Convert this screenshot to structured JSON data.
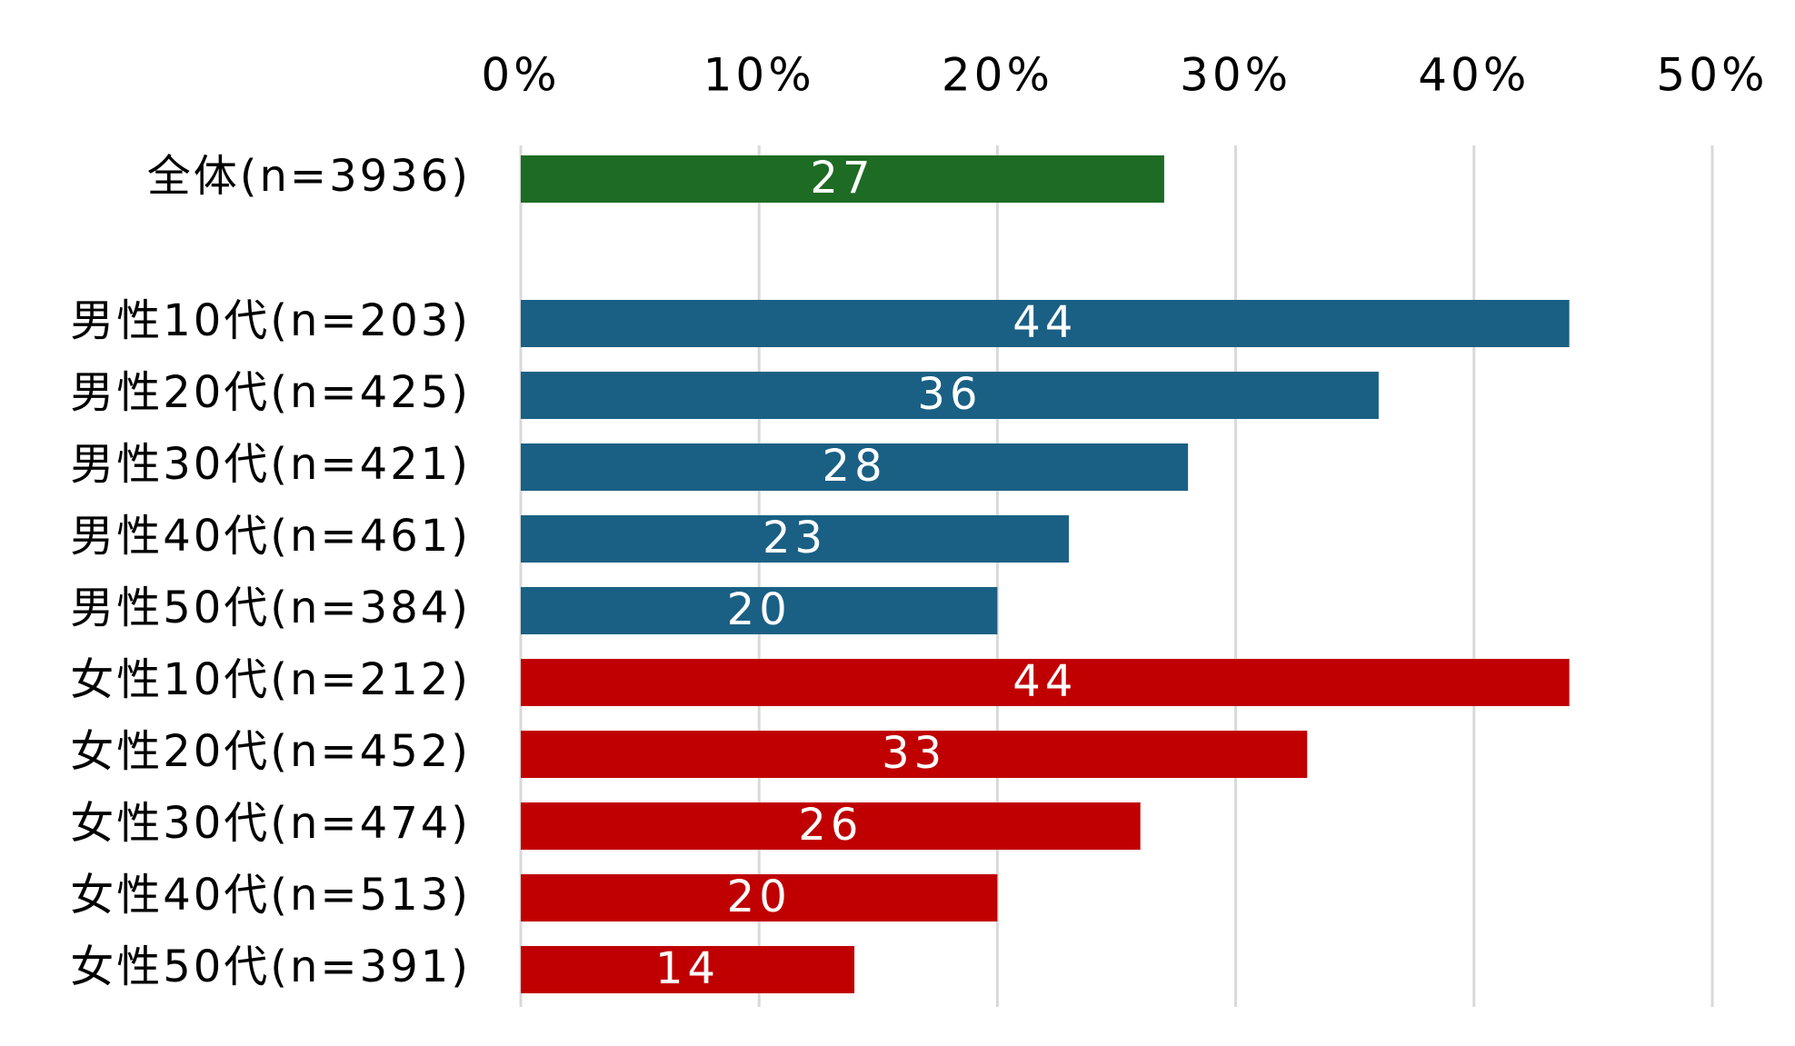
{
  "chart_data": {
    "type": "bar",
    "orientation": "horizontal",
    "x_ticks": [
      "0%",
      "10%",
      "20%",
      "30%",
      "40%",
      "50%"
    ],
    "xlim": [
      0,
      50
    ],
    "x_tick_values": [
      0,
      10,
      20,
      30,
      40,
      50
    ],
    "grid": true,
    "categories": [
      "全体(n=3936)",
      "男性10代(n=203)",
      "男性20代(n=425)",
      "男性30代(n=421)",
      "男性40代(n=461)",
      "男性50代(n=384)",
      "女性10代(n=212)",
      "女性20代(n=452)",
      "女性30代(n=474)",
      "女性40代(n=513)",
      "女性50代(n=391)"
    ],
    "values": [
      27,
      44,
      36,
      28,
      23,
      20,
      44,
      33,
      26,
      20,
      14
    ],
    "value_labels": [
      "27",
      "44",
      "36",
      "28",
      "23",
      "20",
      "44",
      "33",
      "26",
      "20",
      "14"
    ],
    "group": [
      "total",
      "male",
      "male",
      "male",
      "male",
      "male",
      "female",
      "female",
      "female",
      "female",
      "female"
    ],
    "colors": {
      "total": "#1e6b24",
      "male": "#1a6084",
      "female": "#c00000",
      "grid": "#d9d9d9"
    }
  }
}
